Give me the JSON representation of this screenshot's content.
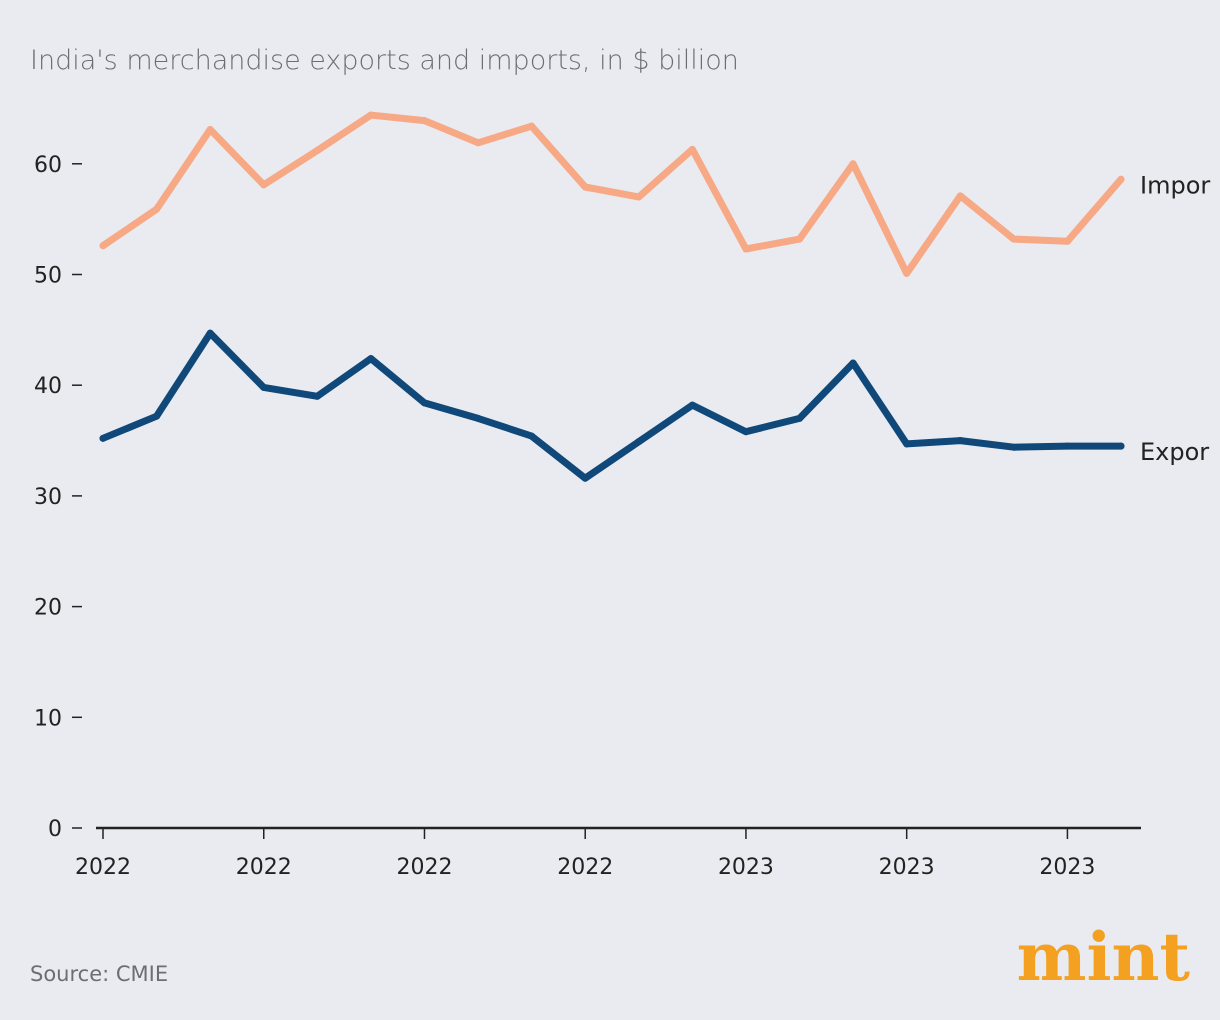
{
  "chart_data": {
    "type": "line",
    "title": "India's merchandise exports and imports, in $ billion",
    "xlabel": "",
    "ylabel": "",
    "ylim": [
      0,
      65
    ],
    "yticks": [
      0,
      10,
      20,
      30,
      40,
      50,
      60
    ],
    "xtick_labels": [
      "2022",
      "2022",
      "2022",
      "2022",
      "2023",
      "2023",
      "2023"
    ],
    "x": [
      0,
      1,
      2,
      3,
      4,
      5,
      6,
      7,
      8,
      9,
      10,
      11,
      12,
      13,
      14,
      15,
      16,
      17,
      18,
      19
    ],
    "series": [
      {
        "name": "Impor",
        "color": "#f7a885",
        "values": [
          52.6,
          55.9,
          63.1,
          58.1,
          61.2,
          64.4,
          63.9,
          61.9,
          63.4,
          57.9,
          57.0,
          61.3,
          52.3,
          53.2,
          60.0,
          50.1,
          57.1,
          53.2,
          53.0,
          58.6
        ]
      },
      {
        "name": "Expor",
        "color": "#0f4879",
        "values": [
          35.2,
          37.2,
          44.7,
          39.8,
          39.0,
          42.4,
          38.4,
          37.0,
          35.4,
          31.6,
          34.9,
          38.2,
          35.8,
          37.0,
          42.0,
          34.7,
          35.0,
          34.4,
          34.5,
          34.5
        ]
      }
    ],
    "source": "Source: CMIE",
    "brand": "mint",
    "brand_color": "#f4a020"
  }
}
